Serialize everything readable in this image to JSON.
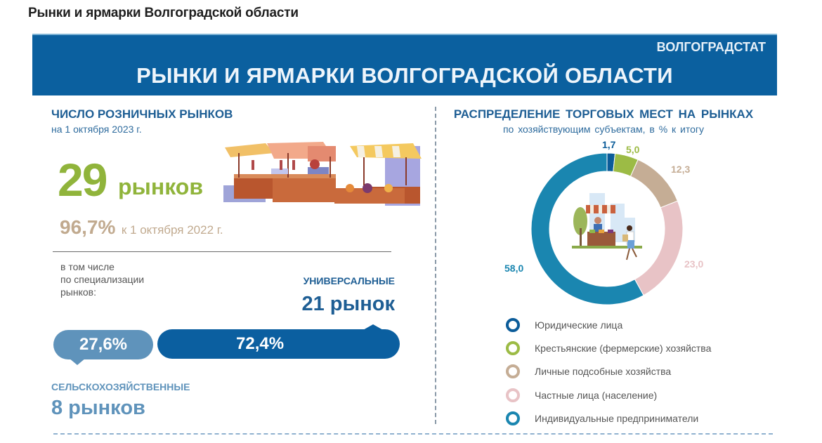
{
  "page_title": "Рынки и ярмарки Волгоградской области",
  "banner": {
    "org": "ВОЛГОГРАДСТАТ",
    "title": "РЫНКИ И ЯРМАРКИ ВОЛГОГРАДСКОЙ ОБЛАСТИ",
    "color": "#0b609f"
  },
  "left": {
    "heading": "ЧИСЛО РОЗНИЧНЫХ РЫНКОВ",
    "subheading": "на 1 октября 2023 г.",
    "total_value": "29",
    "total_unit": "рынков",
    "yoy_value": "96,7%",
    "yoy_text": "к 1 октября 2022 г.",
    "spec_note": [
      "в том числе",
      "по специализации",
      "рынков:"
    ],
    "universal": {
      "label": "УНИВЕРСАЛЬНЫЕ",
      "value": "21 рынок",
      "share": "72,4%",
      "color": "#0b5fa0"
    },
    "agricultural": {
      "label": "СЕЛЬСКОХОЗЯЙСТВЕННЫЕ",
      "value": "8 рынков",
      "share": "27,6%",
      "color": "#5f93bb"
    },
    "illustration": "market-stalls-illustration"
  },
  "right": {
    "heading": "РАСПРЕДЕЛЕНИЕ ТОРГОВЫХ МЕСТ НА РЫНКАХ",
    "subheading": "по хозяйствующим субъектам, в % к итогу",
    "illustration": "market-vendor-illustration"
  },
  "chart_data": [
    {
      "type": "pie",
      "title": "РАСПРЕДЕЛЕНИЕ ТОРГОВЫХ МЕСТ НА РЫНКАХ",
      "subtitle": "по хозяйствующим субъектам, в % к итогу",
      "donut": true,
      "categories": [
        "Юридические лица",
        "Крестьянские (фермерские) хозяйства",
        "Личные подсобные хозяйства",
        "Частные лица (население)",
        "Индивидуальные предприниматели"
      ],
      "values": [
        1.7,
        5.0,
        12.3,
        23.0,
        58.0
      ],
      "labels": [
        "1,7",
        "5,0",
        "12,3",
        "23,0",
        "58,0"
      ],
      "colors": [
        "#0b5c99",
        "#9cbb45",
        "#c5ad95",
        "#e8c3c6",
        "#1a86b0"
      ],
      "legend_position": "bottom"
    },
    {
      "type": "bar",
      "title": "Рынки по специализации",
      "categories": [
        "Сельскохозяйственные",
        "Универсальные"
      ],
      "values": [
        27.6,
        72.4
      ],
      "counts": [
        8,
        21
      ],
      "unit": "%",
      "colors": [
        "#5f93bb",
        "#0b5fa0"
      ]
    }
  ]
}
